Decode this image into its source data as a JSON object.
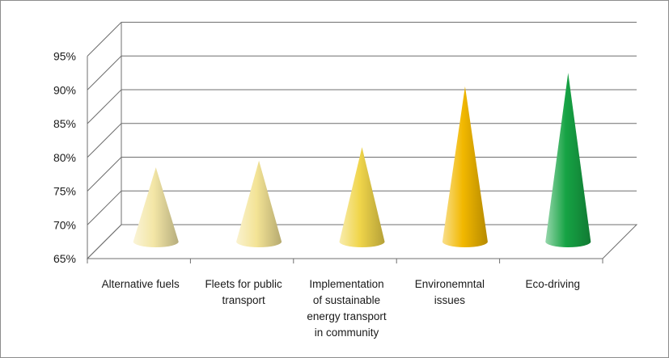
{
  "chart_data": {
    "type": "bar",
    "title": "",
    "xlabel": "",
    "ylabel": "",
    "categories": [
      "Alternative fuels",
      "Fleets for public transport",
      "Implementation of sustainable energy transport in community",
      "Environemntal issues",
      "Eco-driving"
    ],
    "category_lines": [
      [
        "Alternative fuels"
      ],
      [
        "Fleets for public",
        "transport"
      ],
      [
        "Implementation",
        "of sustainable",
        "energy transport",
        "in community"
      ],
      [
        "Environemntal",
        "issues"
      ],
      [
        "Eco-driving"
      ]
    ],
    "values": [
      76,
      77,
      79,
      88,
      90
    ],
    "value_unit": "%",
    "ylim": [
      65,
      95
    ],
    "yticks": [
      "65%",
      "70%",
      "75%",
      "80%",
      "85%",
      "90%",
      "95%"
    ],
    "grid": true,
    "legend": "none",
    "shape": "cone",
    "colors": [
      "#f3e6a6",
      "#f3e395",
      "#f0d54a",
      "#f2b800",
      "#16a344"
    ]
  }
}
